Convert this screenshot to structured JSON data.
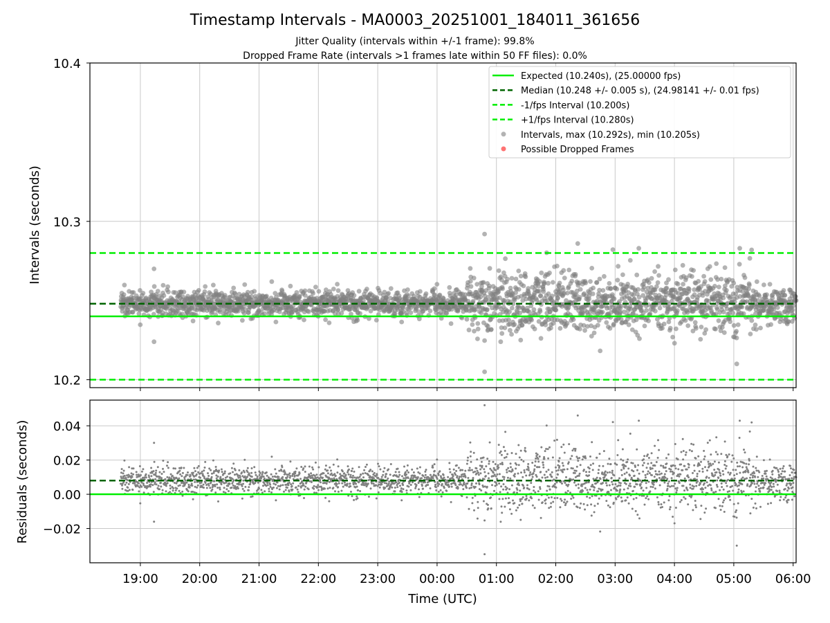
{
  "chart_data": {
    "type": "scatter",
    "title": "Timestamp Intervals - MA0003_20251001_184011_361656",
    "subtitle_lines": [
      "Jitter Quality (intervals within +/-1 frame): 99.8%",
      "Dropped Frame Rate (intervals >1 frames late within 50 FF files): 0.0%"
    ],
    "xlabel": "Time (UTC)",
    "x_tick_labels": [
      "19:00",
      "20:00",
      "21:00",
      "22:00",
      "23:00",
      "00:00",
      "01:00",
      "02:00",
      "03:00",
      "04:00",
      "05:00",
      "06:00"
    ],
    "x_range_hours_from_1800": [
      0.15,
      12.05
    ],
    "data_x_range_hours_from_1800": [
      0.67,
      12.05
    ],
    "top_panel": {
      "ylabel": "Intervals (seconds)",
      "ylim": [
        10.195,
        10.4
      ],
      "y_tick_labels": [
        "10.2",
        "10.3",
        "10.4"
      ],
      "y_ticks": [
        10.2,
        10.3,
        10.4
      ],
      "lines": {
        "expected": 10.24,
        "median": 10.248,
        "minus_interval": 10.2,
        "plus_interval": 10.28
      },
      "stats": {
        "max": 10.292,
        "min": 10.205
      },
      "outliers": [
        {
          "x": 1.23,
          "y": 10.27
        },
        {
          "x": 1.23,
          "y": 10.224
        },
        {
          "x": 6.8,
          "y": 10.292
        },
        {
          "x": 6.8,
          "y": 10.205
        },
        {
          "x": 8.37,
          "y": 10.286
        },
        {
          "x": 9.4,
          "y": 10.283
        },
        {
          "x": 11.1,
          "y": 10.283
        },
        {
          "x": 11.3,
          "y": 10.282
        },
        {
          "x": 11.05,
          "y": 10.21
        }
      ]
    },
    "bottom_panel": {
      "ylabel": "Residuals (seconds)",
      "ylim": [
        -0.04,
        0.055
      ],
      "y_tick_labels": [
        "0.04",
        "0.02",
        "0.00",
        "−0.02"
      ],
      "y_ticks": [
        0.04,
        0.02,
        0.0,
        -0.02
      ],
      "lines": {
        "zero": 0.0,
        "median_residual": 0.008
      }
    },
    "legend": {
      "position": "upper right",
      "items": [
        {
          "label": "Expected (10.240s), (25.00000 fps)",
          "style": "solid",
          "color": "#00ee00"
        },
        {
          "label": "Median (10.248 +/- 0.005 s), (24.98141 +/- 0.01 fps)",
          "style": "dashed",
          "color": "#006400"
        },
        {
          "label": "-1/fps Interval (10.200s)",
          "style": "dashed",
          "color": "#00ee00"
        },
        {
          "label": "+1/fps Interval (10.280s)",
          "style": "dashed",
          "color": "#00ee00"
        },
        {
          "label": "Intervals, max (10.292s), min (10.205s)",
          "style": "marker",
          "color": "#808080"
        },
        {
          "label": "Possible Dropped Frames",
          "style": "marker",
          "color": "#ff4444"
        }
      ]
    },
    "colors": {
      "expected": "#00ee00",
      "median": "#006400",
      "points": "#808080",
      "dropped": "#ff4444",
      "grid": "#c8c8c8"
    }
  }
}
